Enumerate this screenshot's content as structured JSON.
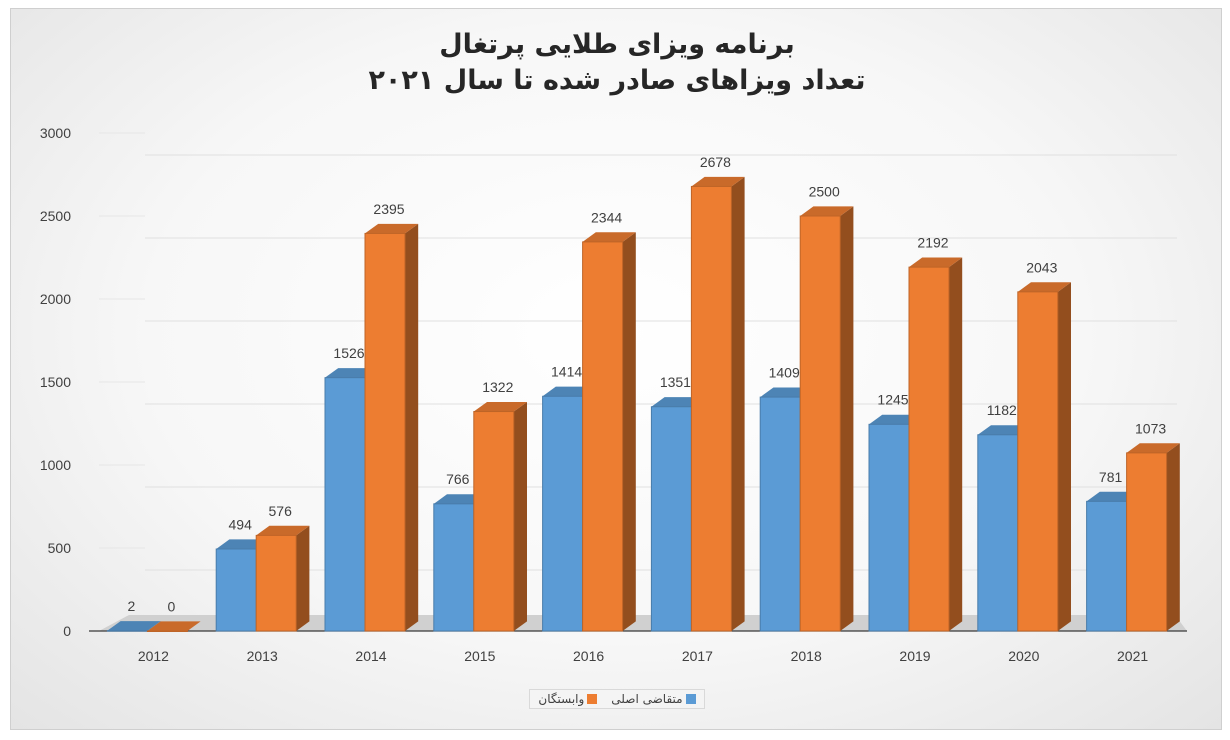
{
  "chart_data": {
    "type": "bar",
    "title_line1": "برنامه ویزای طلایی پرتغال",
    "title_line2": "تعداد ویزاهای صادر شده تا سال ۲۰۲۱",
    "categories": [
      "2012",
      "2013",
      "2014",
      "2015",
      "2016",
      "2017",
      "2018",
      "2019",
      "2020",
      "2021"
    ],
    "series": [
      {
        "name": "متقاضی اصلی",
        "values": [
          2,
          494,
          1526,
          766,
          1414,
          1351,
          1409,
          1245,
          1182,
          781
        ],
        "color": "#5b9bd5"
      },
      {
        "name": "وابستگان",
        "values": [
          0,
          576,
          2395,
          1322,
          2344,
          2678,
          2500,
          2192,
          2043,
          1073
        ],
        "color": "#ed7d31"
      }
    ],
    "ylim": [
      0,
      3000
    ],
    "yticks": [
      0,
      500,
      1000,
      1500,
      2000,
      2500,
      3000
    ],
    "grid": true,
    "legend_position": "bottom",
    "style": "3d-clustered-column"
  }
}
